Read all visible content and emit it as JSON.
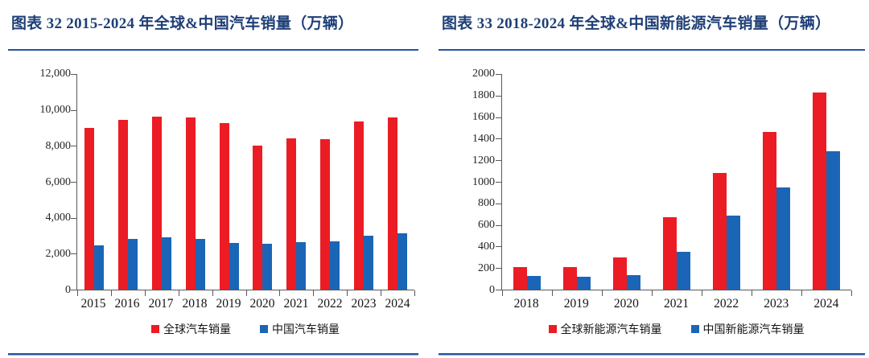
{
  "page": {
    "background": "#ffffff"
  },
  "colors": {
    "title_navy": "#1F3F77",
    "rule_blue": "#24549B",
    "rule_light_blue": "#8FB3DC",
    "axis_gray": "#595959",
    "series_red": "#EC1C24",
    "series_blue": "#1B65B6"
  },
  "chart_data": [
    {
      "type": "bar",
      "title": "图表 32  2015-2024 年全球&中国汽车销量（万辆）",
      "categories": [
        "2015",
        "2016",
        "2017",
        "2018",
        "2019",
        "2020",
        "2021",
        "2022",
        "2023",
        "2024"
      ],
      "series": [
        {
          "name": "全球汽车销量",
          "color": "#EC1C24",
          "values": [
            9000,
            9430,
            9620,
            9580,
            9290,
            8020,
            8420,
            8370,
            9340,
            9600
          ]
        },
        {
          "name": "中国汽车销量",
          "color": "#1B65B6",
          "values": [
            2450,
            2820,
            2900,
            2830,
            2590,
            2540,
            2650,
            2700,
            3020,
            3150
          ]
        }
      ],
      "xlabel": "",
      "ylabel": "",
      "ylim": [
        0,
        12000
      ],
      "y_ticks": [
        {
          "label": "0",
          "value": 0
        },
        {
          "label": "2,000",
          "value": 2000
        },
        {
          "label": "4,000",
          "value": 4000
        },
        {
          "label": "6,000",
          "value": 6000
        },
        {
          "label": "8,000",
          "value": 8000
        },
        {
          "label": "10,000",
          "value": 10000
        },
        {
          "label": "12,000",
          "value": 12000
        }
      ],
      "grid": false,
      "legend_position": "bottom"
    },
    {
      "type": "bar",
      "title": "图表 33  2018-2024 年全球&中国新能源汽车销量（万辆）",
      "categories": [
        "2018",
        "2019",
        "2020",
        "2021",
        "2022",
        "2023",
        "2024"
      ],
      "series": [
        {
          "name": "全球新能源汽车销量",
          "color": "#EC1C24",
          "values": [
            207,
            212,
            300,
            670,
            1080,
            1465,
            1825
          ]
        },
        {
          "name": "中国新能源汽车销量",
          "color": "#1B65B6",
          "values": [
            126,
            120,
            137,
            352,
            689,
            950,
            1287
          ]
        }
      ],
      "xlabel": "",
      "ylabel": "",
      "ylim": [
        0,
        2000
      ],
      "y_ticks": [
        {
          "label": "0",
          "value": 0
        },
        {
          "label": "200",
          "value": 200
        },
        {
          "label": "400",
          "value": 400
        },
        {
          "label": "600",
          "value": 600
        },
        {
          "label": "800",
          "value": 800
        },
        {
          "label": "1000",
          "value": 1000
        },
        {
          "label": "1200",
          "value": 1200
        },
        {
          "label": "1400",
          "value": 1400
        },
        {
          "label": "1600",
          "value": 1600
        },
        {
          "label": "1800",
          "value": 1800
        },
        {
          "label": "2000",
          "value": 2000
        }
      ],
      "grid": false,
      "legend_position": "bottom"
    }
  ]
}
